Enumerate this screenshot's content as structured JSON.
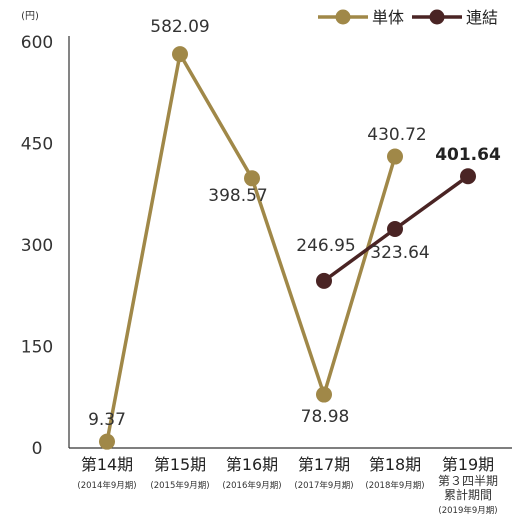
{
  "chart_data": {
    "type": "line",
    "unit_label": "(円)",
    "y_ticks": [
      "0",
      "150",
      "300",
      "450",
      "600"
    ],
    "ylim": [
      0,
      600
    ],
    "grid": false,
    "legend_position": "top-right",
    "categories": [
      {
        "name": "第14期",
        "sub": [
          "(2014年9月期)"
        ]
      },
      {
        "name": "第15期",
        "sub": [
          "(2015年9月期)"
        ]
      },
      {
        "name": "第16期",
        "sub": [
          "(2016年9月期)"
        ]
      },
      {
        "name": "第17期",
        "sub": [
          "(2017年9月期)"
        ]
      },
      {
        "name": "第18期",
        "sub": [
          "(2018年9月期)"
        ]
      },
      {
        "name": "第19期",
        "sub": [
          "第３四半期",
          "累計期間",
          "(2019年9月期)"
        ]
      }
    ],
    "series": [
      {
        "name": "単体",
        "color": "#a08848",
        "values": [
          9.37,
          582.09,
          398.57,
          78.98,
          430.72,
          null
        ],
        "labels": [
          "9.37",
          "582.09",
          "398.57",
          "78.98",
          "430.72",
          ""
        ]
      },
      {
        "name": "連結",
        "color": "#4a2424",
        "values": [
          null,
          null,
          null,
          246.95,
          323.64,
          401.64
        ],
        "labels": [
          "",
          "",
          "",
          "246.95",
          "323.64",
          "401.64"
        ]
      }
    ]
  }
}
